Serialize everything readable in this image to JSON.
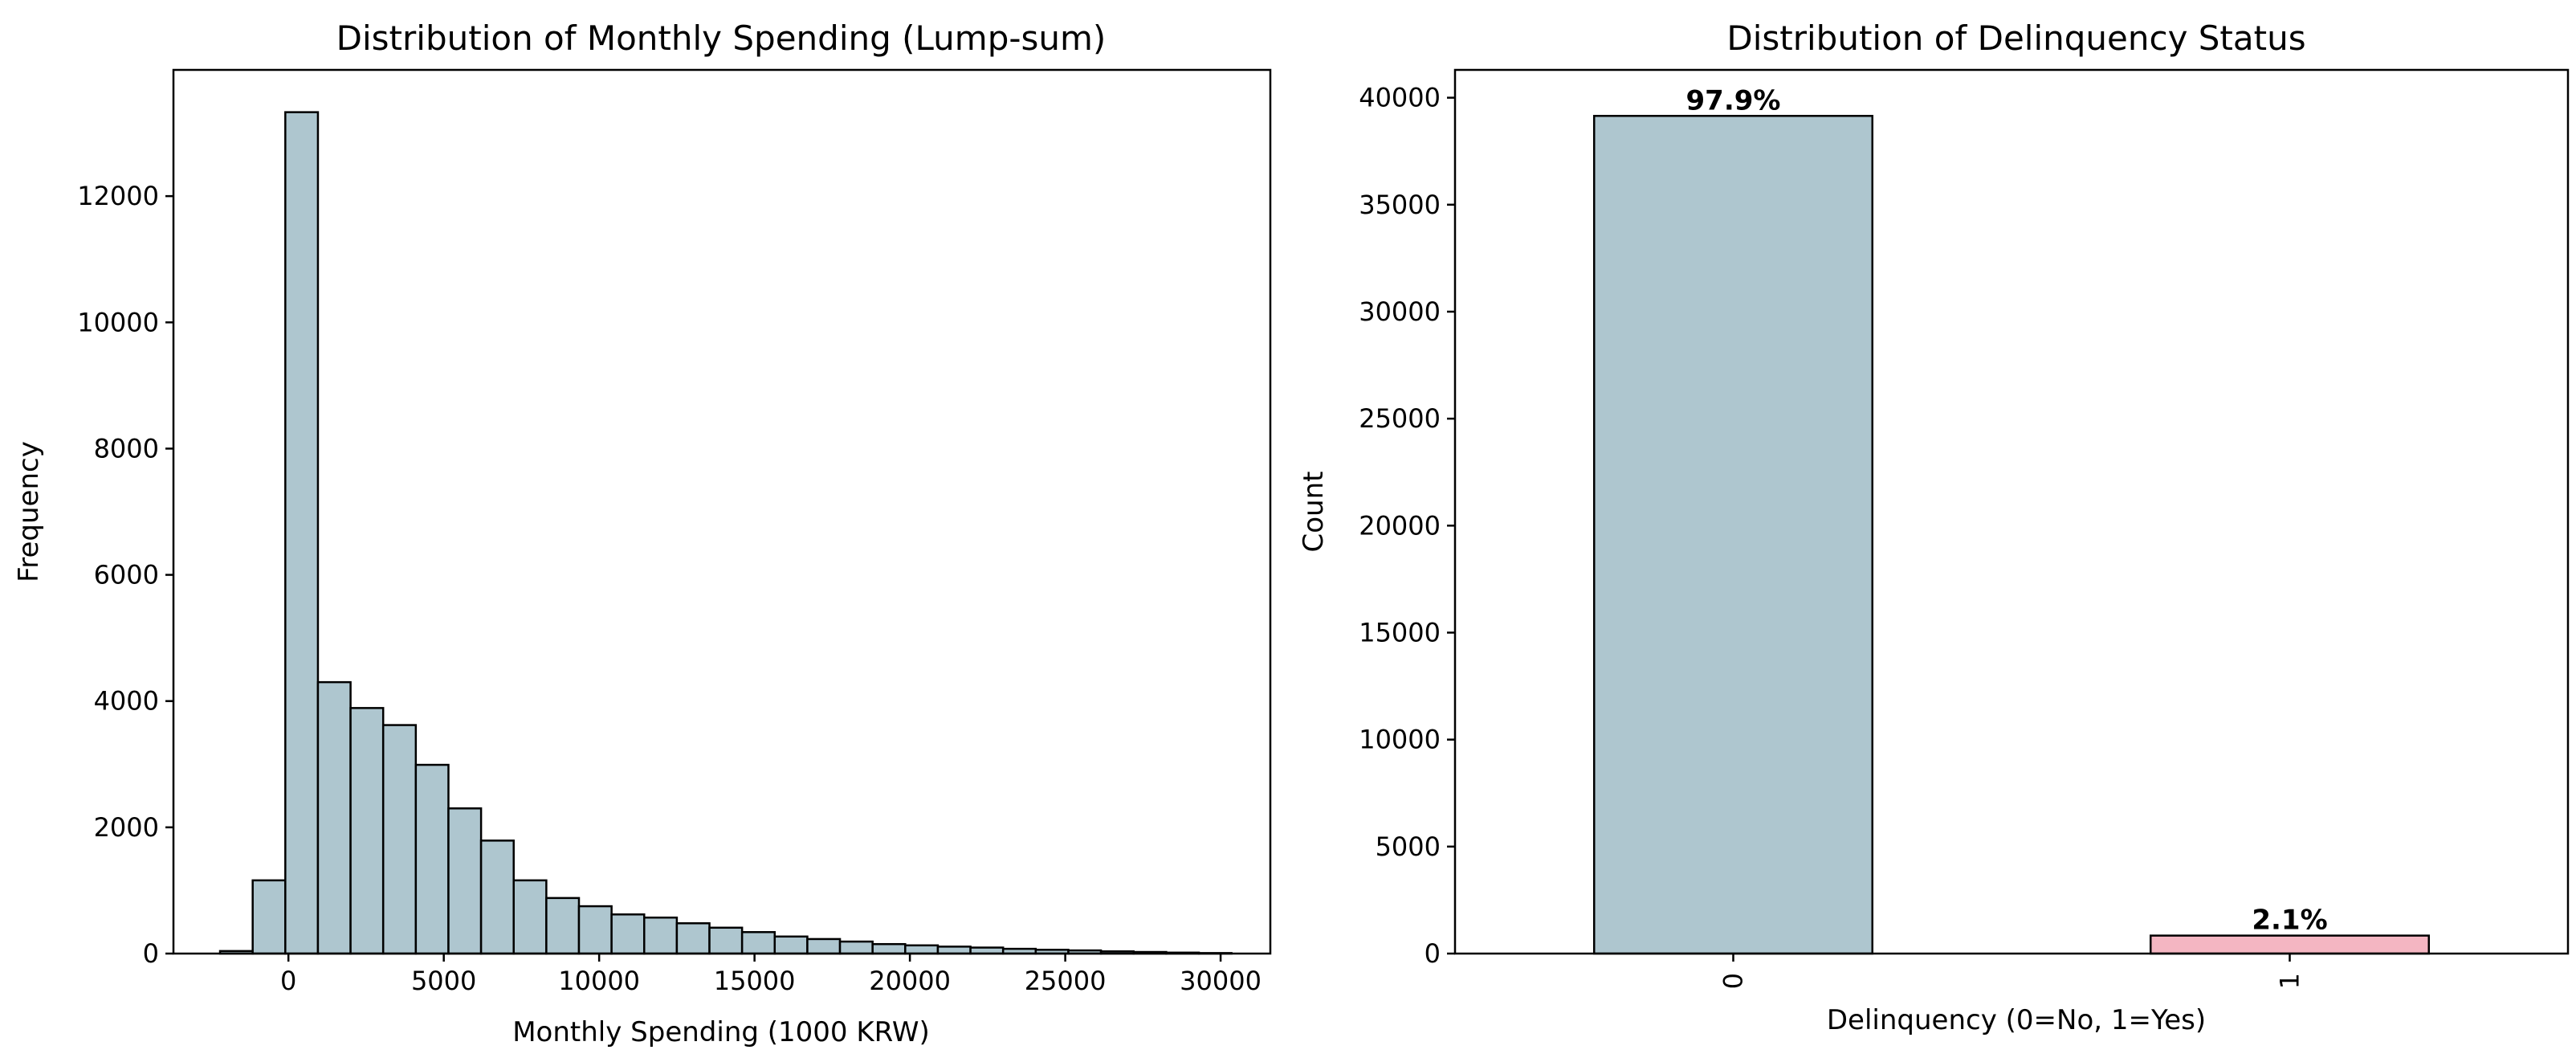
{
  "chart_data": [
    {
      "type": "bar",
      "subtype": "histogram",
      "title": "Distribution of Monthly Spending (Lump-sum)",
      "xlabel": "Monthly Spending (1000 KRW)",
      "ylabel": "Frequency",
      "xlim": [
        -3700,
        31600
      ],
      "ylim": [
        0,
        14000
      ],
      "xticks": [
        0,
        5000,
        10000,
        15000,
        20000,
        25000,
        30000
      ],
      "yticks": [
        0,
        2000,
        4000,
        6000,
        8000,
        10000,
        12000
      ],
      "bin_edges": [
        -2200,
        -1150,
        -100,
        950,
        2000,
        3050,
        4100,
        5150,
        6200,
        7250,
        8300,
        9350,
        10400,
        11450,
        12500,
        13550,
        14600,
        15650,
        16700,
        17750,
        18800,
        19850,
        20900,
        21950,
        23000,
        24050,
        25100,
        26150,
        27200,
        28250,
        29300,
        30350
      ],
      "values": [
        40,
        1160,
        13330,
        4300,
        3890,
        3620,
        2990,
        2300,
        1790,
        1160,
        880,
        750,
        620,
        570,
        480,
        410,
        340,
        270,
        230,
        190,
        150,
        130,
        110,
        95,
        75,
        60,
        50,
        35,
        25,
        15,
        8
      ],
      "bar_color": "#aec6cf",
      "edge_color": "#000000",
      "grid": false
    },
    {
      "type": "bar",
      "title": "Distribution of Delinquency Status",
      "xlabel": "Delinquency (0=No, 1=Yes)",
      "ylabel": "Count",
      "categories": [
        "0",
        "1"
      ],
      "values": [
        39150,
        840
      ],
      "data_labels": [
        "97.9%",
        "2.1%"
      ],
      "ylim": [
        0,
        41300
      ],
      "yticks": [
        0,
        5000,
        10000,
        15000,
        20000,
        25000,
        30000,
        35000,
        40000
      ],
      "colors": [
        "#aec6cf",
        "#f4b6c2"
      ],
      "edge_color": "#000000",
      "grid": false
    }
  ]
}
